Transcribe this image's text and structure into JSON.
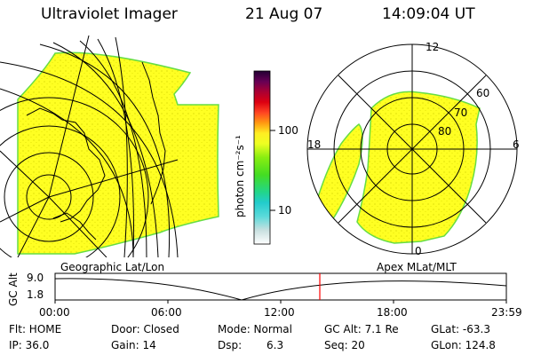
{
  "header": {
    "instrument": "Ultraviolet Imager",
    "date": "21 Aug 07",
    "time": "14:09:04 UT"
  },
  "colorbar": {
    "unit_label": "photon cm⁻²s⁻¹",
    "ticks": [
      "100",
      "10"
    ],
    "scale": "log"
  },
  "polar_plot": {
    "mlt_labels": {
      "top": "12",
      "right": "6",
      "bottom": "0",
      "left": "18"
    },
    "lat_labels": [
      "60",
      "70",
      "80"
    ]
  },
  "plot_labels": {
    "left": "Geographic Lat/Lon",
    "right": "Apex MLat/MLT"
  },
  "altitude_panel": {
    "axis_label": "GC Alt",
    "y_ticks": [
      "9.0",
      "1.8"
    ],
    "x_ticks": [
      "00:00",
      "06:00",
      "12:00",
      "18:00",
      "23:59"
    ],
    "current_time_marker": "14:09",
    "line_color": "#ff0000"
  },
  "status": {
    "flt": "Flt: HOME",
    "ip": "IP: 36.0",
    "door": "Door: Closed",
    "gain": "Gain: 14",
    "mode": "Mode: Normal",
    "dsp_label": "Dsp:",
    "dsp_value": "6.3",
    "gc_alt": "GC Alt: 7.1 Re",
    "seq": "Seq: 20",
    "glat": "GLat: -63.3",
    "glon": "GLon: 124.8"
  },
  "colors": {
    "emission": "#ffff22",
    "emission_edge": "#66dd44",
    "dots": "#cccc00",
    "marker": "#ff0000"
  }
}
